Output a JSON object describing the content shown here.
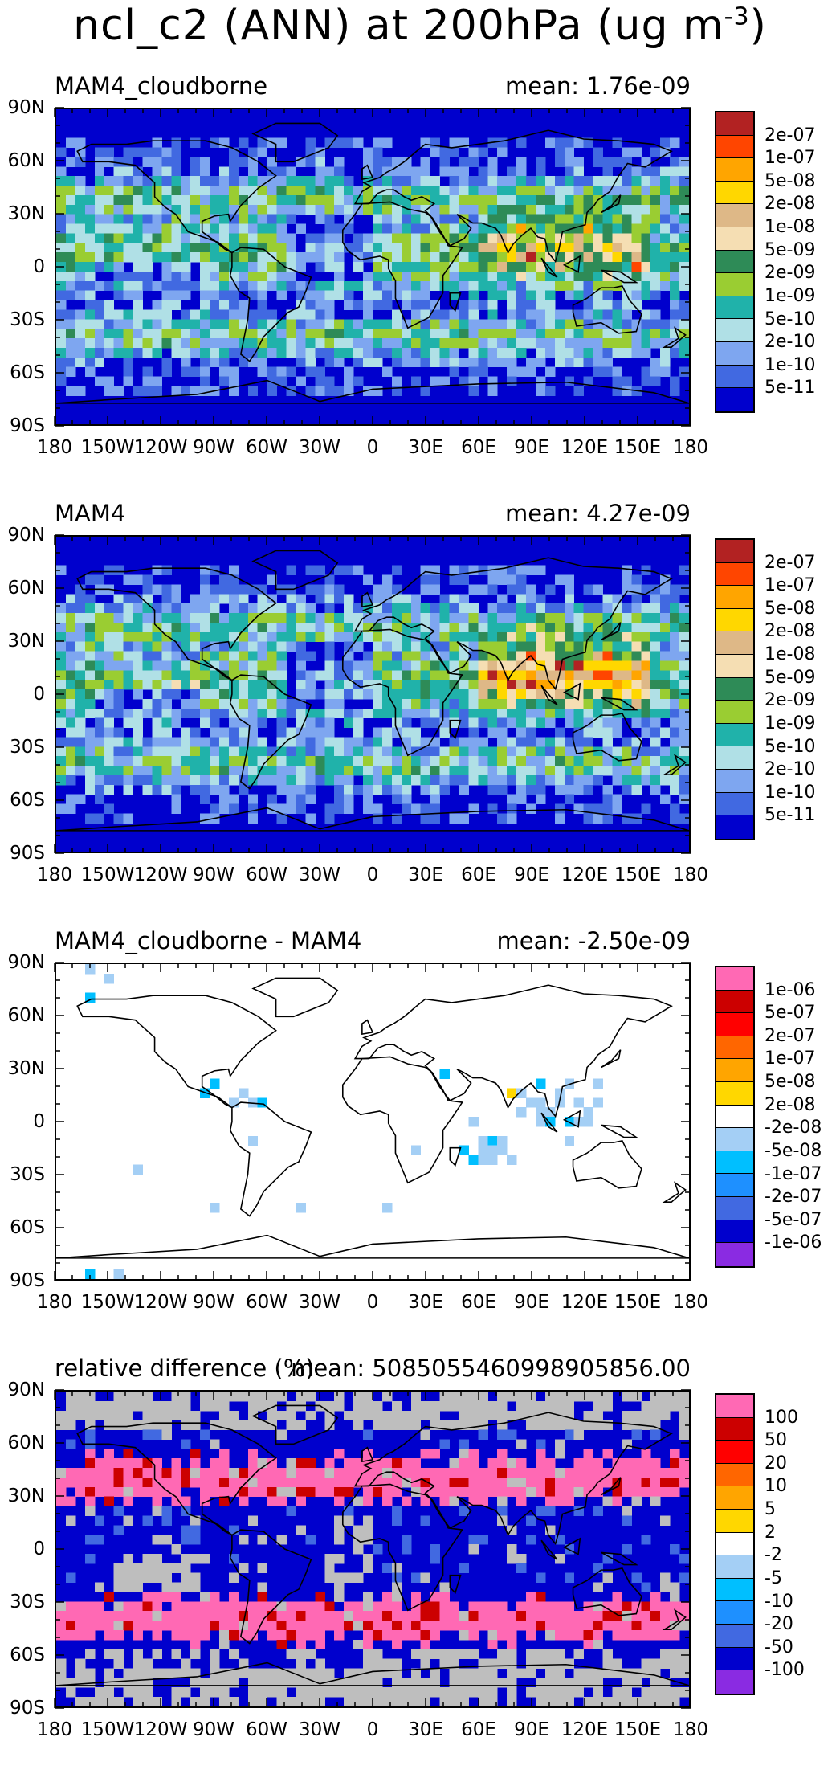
{
  "figure": {
    "title_main": "ncl_c2 (ANN) at 200hPa (ug m",
    "title_sup": "-3",
    "title_end": ")"
  },
  "axes": {
    "lat_labels": [
      "90N",
      "60N",
      "30N",
      "0",
      "30S",
      "60S",
      "90S"
    ],
    "lon_labels": [
      "180",
      "150W",
      "120W",
      "90W",
      "60W",
      "30W",
      "0",
      "30E",
      "60E",
      "90E",
      "120E",
      "150E",
      "180"
    ]
  },
  "panels": [
    {
      "name": "MAM4_cloudborne",
      "mean": "mean: 1.76e-09",
      "kind": "field",
      "colors": [
        "#b22222",
        "#ff4500",
        "#ffa500",
        "#ffd700",
        "#deb887",
        "#f5deb3",
        "#2e8b57",
        "#9acd32",
        "#20b2aa",
        "#b0e0e6",
        "#7ea6f0",
        "#4169e1",
        "#0000cd"
      ],
      "levels": [
        "2e-07",
        "1e-07",
        "5e-08",
        "2e-08",
        "1e-08",
        "5e-09",
        "2e-09",
        "1e-09",
        "5e-10",
        "2e-10",
        "1e-10",
        "5e-11"
      ]
    },
    {
      "name": "MAM4",
      "mean": "mean: 4.27e-09",
      "kind": "field",
      "colors": [
        "#b22222",
        "#ff4500",
        "#ffa500",
        "#ffd700",
        "#deb887",
        "#f5deb3",
        "#2e8b57",
        "#9acd32",
        "#20b2aa",
        "#b0e0e6",
        "#7ea6f0",
        "#4169e1",
        "#0000cd"
      ],
      "levels": [
        "2e-07",
        "1e-07",
        "5e-08",
        "2e-08",
        "1e-08",
        "5e-09",
        "2e-09",
        "1e-09",
        "5e-10",
        "2e-10",
        "1e-10",
        "5e-11"
      ]
    },
    {
      "name": "MAM4_cloudborne - MAM4",
      "mean": "mean: -2.50e-09",
      "kind": "diff",
      "colors": [
        "#ff69b4",
        "#cc0000",
        "#ff0000",
        "#ff6600",
        "#ffa500",
        "#ffd700",
        "#ffffff",
        "#a4cff5",
        "#00bfff",
        "#1e90ff",
        "#4169e1",
        "#0000cd",
        "#8a2be2"
      ],
      "levels": [
        "1e-06",
        "5e-07",
        "2e-07",
        "1e-07",
        "5e-08",
        "2e-08",
        "-2e-08",
        "-5e-08",
        "-1e-07",
        "-2e-07",
        "-5e-07",
        "-1e-06"
      ]
    },
    {
      "name": "relative difference (%)",
      "mean": "mean: 5085055460998905856.00",
      "kind": "rel",
      "colors": [
        "#ff69b4",
        "#cc0000",
        "#ff0000",
        "#ff6600",
        "#ffa500",
        "#ffd700",
        "#ffffff",
        "#a4cff5",
        "#00bfff",
        "#1e90ff",
        "#4169e1",
        "#0000cd",
        "#8a2be2"
      ],
      "levels": [
        "100",
        "50",
        "20",
        "10",
        "5",
        "2",
        "-2",
        "-5",
        "-10",
        "-20",
        "-50",
        "-100"
      ]
    }
  ]
}
